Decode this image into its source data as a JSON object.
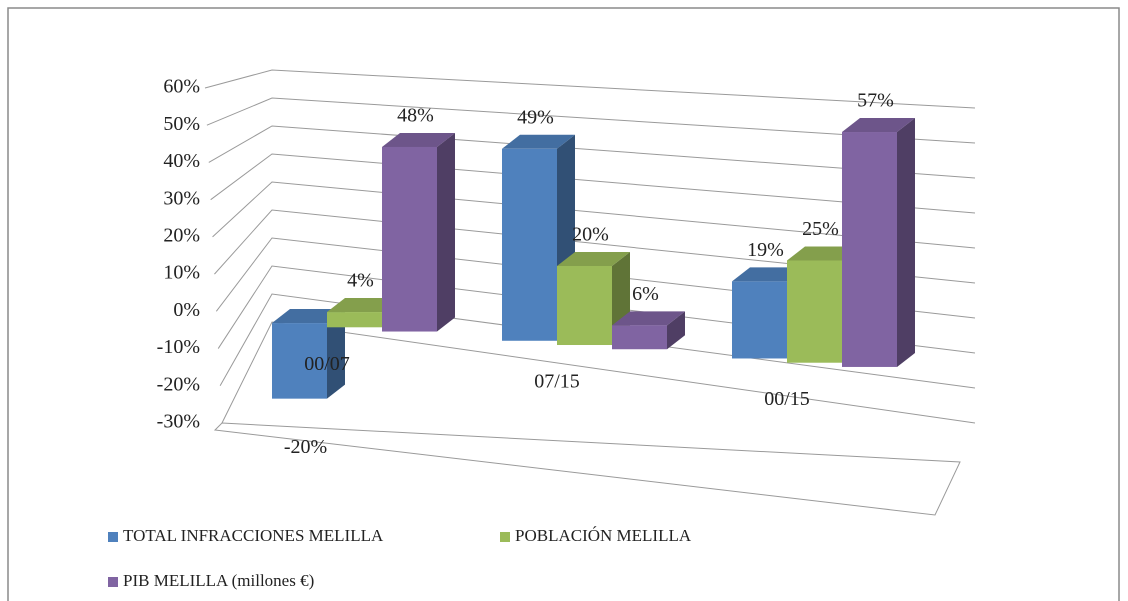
{
  "chart_data": {
    "type": "bar3d",
    "categories": [
      "00/07",
      "07/15",
      "00/15"
    ],
    "series": [
      {
        "name": "TOTAL INFRACCIONES MELILLA",
        "color": "#4f81bd",
        "values": [
          -20,
          49,
          19
        ],
        "value_labels": [
          "-20%",
          "49%",
          "19%"
        ]
      },
      {
        "name": "POBLACIÓN MELILLA",
        "color": "#9bbb59",
        "values": [
          4,
          20,
          25
        ],
        "value_labels": [
          "4%",
          "20%",
          "25%"
        ]
      },
      {
        "name": "PIB MELILLA  (millones  €)",
        "color": "#8064a2",
        "values": [
          48,
          6,
          57
        ],
        "value_labels": [
          "48%",
          "6%",
          "57%"
        ]
      }
    ],
    "ylim": [
      -30,
      60
    ],
    "yticks": [
      {
        "value": -30,
        "label": "-30%"
      },
      {
        "value": -20,
        "label": "-20%"
      },
      {
        "value": -10,
        "label": "-10%"
      },
      {
        "value": 0,
        "label": "0%"
      },
      {
        "value": 10,
        "label": "10%"
      },
      {
        "value": 20,
        "label": "20%"
      },
      {
        "value": 30,
        "label": "30%"
      },
      {
        "value": 40,
        "label": "40%"
      },
      {
        "value": 50,
        "label": "50%"
      },
      {
        "value": 60,
        "label": "60%"
      }
    ],
    "grid": true,
    "legend": "bottom"
  }
}
